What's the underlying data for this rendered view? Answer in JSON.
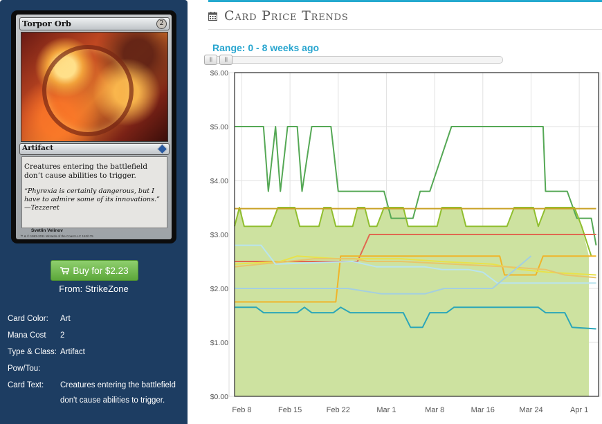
{
  "card": {
    "name": "Torpor Orb",
    "mana_symbol": "2",
    "type_line": "Artifact",
    "rules_text": "Creatures entering the battlefield don’t cause abilities to trigger.",
    "flavor_text": "“Phyrexia is certainly dangerous, but I have to admire some of its innovations.” —Tezzeret",
    "artist": "Svetlin Velinov",
    "copyright": "™ & © 1993-2011 Wizards of the Coast LLC 162/175"
  },
  "buy": {
    "label": "Buy for $2.23",
    "from": "From: StrikeZone"
  },
  "details": [
    {
      "label": "Card Color:",
      "value": "Art"
    },
    {
      "label": "Mana Cost",
      "value": "2"
    },
    {
      "label": "Type & Class:",
      "value": "Artifact"
    },
    {
      "label": "Pow/Tou:",
      "value": ""
    },
    {
      "label": "Card Text:",
      "value": "Creatures entering the battlefield don't cause abilities to trigger."
    }
  ],
  "header": {
    "title": "Card Price Trends",
    "icon": "calendar-icon",
    "range_label": "Range: 0 - 8 weeks ago"
  },
  "colors": {
    "panel_bg": "#1d3d62",
    "accent": "#24a9cf",
    "buy_button": "#6fb94a",
    "area_fill": "#cde2a0"
  },
  "chart_data": {
    "type": "line",
    "x_ticks": [
      "Feb 8",
      "Feb 15",
      "Feb 22",
      "Mar 1",
      "Mar 8",
      "Mar 16",
      "Mar 24",
      "Apr 1"
    ],
    "y_ticks": [
      "$0.00",
      "$1.00",
      "$2.00",
      "$3.00",
      "$4.00",
      "$5.00",
      "$6.00"
    ],
    "ylim": [
      0,
      6
    ],
    "xlim": [
      -0.15,
      7.4
    ],
    "grid": true,
    "area_series": {
      "color": "#cde2a0",
      "points": [
        [
          -0.15,
          3.15
        ],
        [
          -0.05,
          3.5
        ],
        [
          0.05,
          3.15
        ],
        [
          0.6,
          3.15
        ],
        [
          0.75,
          3.5
        ],
        [
          1.1,
          3.5
        ],
        [
          1.2,
          3.15
        ],
        [
          1.6,
          3.15
        ],
        [
          1.7,
          3.5
        ],
        [
          1.85,
          3.5
        ],
        [
          1.95,
          3.15
        ],
        [
          2.3,
          3.15
        ],
        [
          2.4,
          3.5
        ],
        [
          2.55,
          3.5
        ],
        [
          2.65,
          3.15
        ],
        [
          2.8,
          3.15
        ],
        [
          2.95,
          3.5
        ],
        [
          3.35,
          3.5
        ],
        [
          3.45,
          3.15
        ],
        [
          4.05,
          3.15
        ],
        [
          4.15,
          3.5
        ],
        [
          4.55,
          3.5
        ],
        [
          4.65,
          3.15
        ],
        [
          5.5,
          3.15
        ],
        [
          5.65,
          3.5
        ],
        [
          6.05,
          3.5
        ],
        [
          6.15,
          3.15
        ],
        [
          6.3,
          3.5
        ],
        [
          6.9,
          3.5
        ],
        [
          7.05,
          3.15
        ],
        [
          7.2,
          2.6
        ]
      ]
    },
    "series": [
      {
        "color": "#55a855",
        "points": [
          [
            -0.15,
            5.0
          ],
          [
            0.45,
            5.0
          ],
          [
            0.55,
            3.8
          ],
          [
            0.7,
            5.0
          ],
          [
            0.8,
            3.8
          ],
          [
            0.95,
            5.0
          ],
          [
            1.15,
            5.0
          ],
          [
            1.25,
            3.8
          ],
          [
            1.45,
            5.0
          ],
          [
            1.85,
            5.0
          ],
          [
            2.0,
            3.8
          ],
          [
            2.95,
            3.8
          ],
          [
            3.1,
            3.3
          ],
          [
            3.55,
            3.3
          ],
          [
            3.7,
            3.8
          ],
          [
            3.9,
            3.8
          ],
          [
            4.35,
            5.0
          ],
          [
            5.45,
            5.0
          ],
          [
            6.25,
            5.0
          ],
          [
            6.3,
            3.8
          ],
          [
            6.75,
            3.8
          ],
          [
            6.95,
            3.3
          ],
          [
            7.25,
            3.3
          ],
          [
            7.35,
            2.8
          ]
        ]
      },
      {
        "color": "#8fbe2e",
        "points": [
          [
            -0.15,
            3.15
          ],
          [
            -0.05,
            3.5
          ],
          [
            0.05,
            3.15
          ],
          [
            0.6,
            3.15
          ],
          [
            0.75,
            3.5
          ],
          [
            1.1,
            3.5
          ],
          [
            1.2,
            3.15
          ],
          [
            1.6,
            3.15
          ],
          [
            1.7,
            3.5
          ],
          [
            1.85,
            3.5
          ],
          [
            1.95,
            3.15
          ],
          [
            2.3,
            3.15
          ],
          [
            2.4,
            3.5
          ],
          [
            2.55,
            3.5
          ],
          [
            2.65,
            3.15
          ],
          [
            2.8,
            3.15
          ],
          [
            2.95,
            3.5
          ],
          [
            3.35,
            3.5
          ],
          [
            3.45,
            3.15
          ],
          [
            4.05,
            3.15
          ],
          [
            4.15,
            3.5
          ],
          [
            4.55,
            3.5
          ],
          [
            4.65,
            3.15
          ],
          [
            5.5,
            3.15
          ],
          [
            5.65,
            3.5
          ],
          [
            6.05,
            3.5
          ],
          [
            6.15,
            3.15
          ],
          [
            6.3,
            3.5
          ],
          [
            6.9,
            3.5
          ],
          [
            7.05,
            3.15
          ],
          [
            7.25,
            2.6
          ]
        ]
      },
      {
        "color": "#c9a227",
        "points": [
          [
            -0.15,
            3.48
          ],
          [
            7.35,
            3.48
          ]
        ]
      },
      {
        "color": "#e06850",
        "points": [
          [
            -0.15,
            2.5
          ],
          [
            2.4,
            2.5
          ],
          [
            2.65,
            3.0
          ],
          [
            7.35,
            3.0
          ]
        ]
      },
      {
        "color": "#f0b429",
        "points": [
          [
            -0.15,
            1.75
          ],
          [
            1.95,
            1.75
          ],
          [
            2.05,
            2.6
          ],
          [
            5.35,
            2.6
          ],
          [
            5.45,
            2.25
          ],
          [
            6.1,
            2.25
          ],
          [
            6.25,
            2.6
          ],
          [
            7.35,
            2.6
          ]
        ]
      },
      {
        "color": "#e8e24a",
        "points": [
          [
            -0.15,
            2.45
          ],
          [
            0.8,
            2.5
          ],
          [
            1.15,
            2.6
          ],
          [
            2.0,
            2.55
          ],
          [
            3.3,
            2.55
          ],
          [
            4.1,
            2.5
          ],
          [
            5.2,
            2.45
          ],
          [
            5.8,
            2.35
          ],
          [
            6.35,
            2.3
          ],
          [
            7.35,
            2.25
          ]
        ]
      },
      {
        "color": "#e8c56a",
        "points": [
          [
            -0.15,
            2.4
          ],
          [
            1.5,
            2.55
          ],
          [
            2.35,
            2.55
          ],
          [
            2.6,
            2.5
          ],
          [
            3.3,
            2.5
          ],
          [
            4.4,
            2.45
          ],
          [
            5.5,
            2.4
          ],
          [
            6.3,
            2.35
          ],
          [
            6.7,
            2.25
          ],
          [
            7.35,
            2.2
          ]
        ]
      },
      {
        "color": "#b9e4ee",
        "points": [
          [
            -0.15,
            2.8
          ],
          [
            0.4,
            2.8
          ],
          [
            0.7,
            2.45
          ],
          [
            2.3,
            2.5
          ],
          [
            2.8,
            2.4
          ],
          [
            3.8,
            2.4
          ],
          [
            4.15,
            2.35
          ],
          [
            4.7,
            2.35
          ],
          [
            5.0,
            2.3
          ],
          [
            5.3,
            2.1
          ],
          [
            7.35,
            2.1
          ]
        ]
      },
      {
        "color": "#a4cfe0",
        "points": [
          [
            -0.15,
            2.0
          ],
          [
            2.2,
            2.0
          ],
          [
            2.9,
            1.9
          ],
          [
            3.8,
            1.9
          ],
          [
            4.2,
            2.0
          ],
          [
            5.2,
            2.0
          ],
          [
            5.6,
            2.3
          ],
          [
            6.0,
            2.6
          ]
        ]
      },
      {
        "color": "#2ba6b8",
        "points": [
          [
            -0.15,
            1.65
          ],
          [
            0.3,
            1.65
          ],
          [
            0.45,
            1.55
          ],
          [
            1.15,
            1.55
          ],
          [
            1.3,
            1.65
          ],
          [
            1.45,
            1.55
          ],
          [
            1.9,
            1.55
          ],
          [
            2.05,
            1.65
          ],
          [
            2.25,
            1.55
          ],
          [
            3.35,
            1.55
          ],
          [
            3.5,
            1.28
          ],
          [
            3.75,
            1.28
          ],
          [
            3.9,
            1.55
          ],
          [
            4.25,
            1.55
          ],
          [
            4.4,
            1.65
          ],
          [
            6.15,
            1.65
          ],
          [
            6.3,
            1.55
          ],
          [
            6.7,
            1.55
          ],
          [
            6.85,
            1.28
          ],
          [
            7.35,
            1.25
          ]
        ]
      }
    ]
  }
}
